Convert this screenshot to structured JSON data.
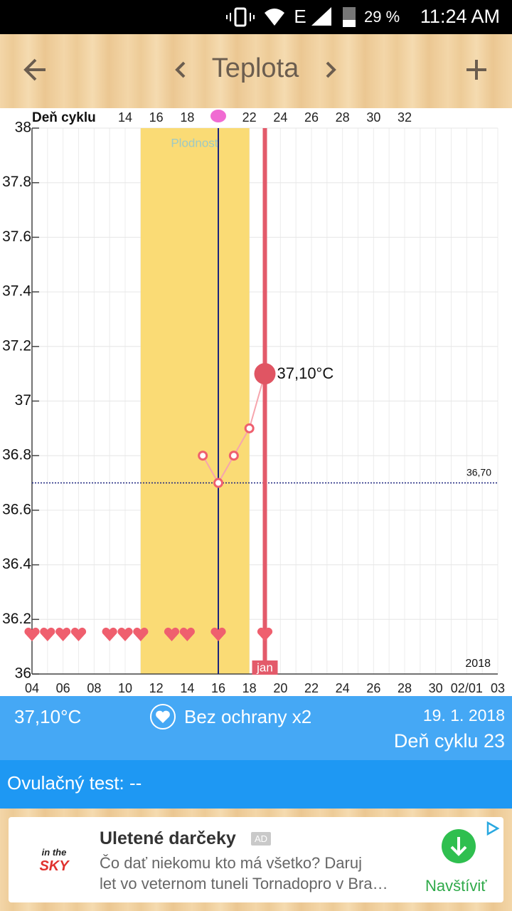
{
  "status_bar": {
    "network": "E",
    "battery": "29 %",
    "time": "11:24 AM"
  },
  "header": {
    "title": "Teplota"
  },
  "chart_data": {
    "type": "line",
    "top_axis_title": "Deň cyklu",
    "x": [
      15,
      16,
      17,
      18,
      19
    ],
    "values": [
      36.8,
      36.7,
      36.8,
      36.9,
      37.1
    ],
    "value_labels": [
      null,
      null,
      null,
      null,
      "37,10°C"
    ],
    "color": "#e35a6a",
    "xlim": [
      4,
      34
    ],
    "xticks": [
      {
        "value": 4,
        "label": "04"
      },
      {
        "value": 6,
        "label": "06"
      },
      {
        "value": 8,
        "label": "08"
      },
      10,
      12,
      14,
      16,
      18,
      20,
      22,
      24,
      26,
      28,
      30,
      {
        "value": 32,
        "label": "02/01"
      },
      {
        "value": 34,
        "label": "03"
      }
    ],
    "top_ticks": [
      {
        "value": 10,
        "label": "14"
      },
      {
        "value": 12,
        "label": "16"
      },
      {
        "value": 14,
        "label": "18"
      },
      {
        "value": 18,
        "label": "22"
      },
      {
        "value": 20,
        "label": "24"
      },
      {
        "value": 22,
        "label": "26"
      },
      {
        "value": 24,
        "label": "28"
      },
      {
        "value": 26,
        "label": "30"
      },
      {
        "value": 28,
        "label": "32"
      }
    ],
    "ylim": [
      36,
      38
    ],
    "yticks": [
      36,
      36.2,
      36.4,
      36.6,
      36.8,
      37,
      37.2,
      37.4,
      37.6,
      37.8,
      38
    ],
    "grid": true,
    "fertile_window": [
      11,
      18
    ],
    "fertile_label": "Plodnosť",
    "ovulation_day": 16,
    "cover_line": {
      "value": 36.7,
      "label": "36,70"
    },
    "current_day": 19,
    "current_day_label": "jan",
    "year_label": "2018",
    "intercourse_days": [
      4,
      5,
      6,
      7,
      9,
      10,
      11,
      13,
      14,
      16,
      19
    ]
  },
  "info": {
    "temperature": "37,10°C",
    "intercourse": "Bez ochrany x2",
    "date": "19. 1. 2018",
    "cycle_day": "Deň cyklu 23"
  },
  "ovulation_test": "Ovulačný test: --",
  "ad": {
    "logo_top": "in the",
    "logo_bottom": "SKY",
    "title": "Uletené darčeky",
    "badge": "AD",
    "line1": "Čo dať niekomu kto má všetko? Daruj",
    "line2": "let vo veternom tuneli Tornadopro v Bra…",
    "button": "Navštíviť"
  }
}
